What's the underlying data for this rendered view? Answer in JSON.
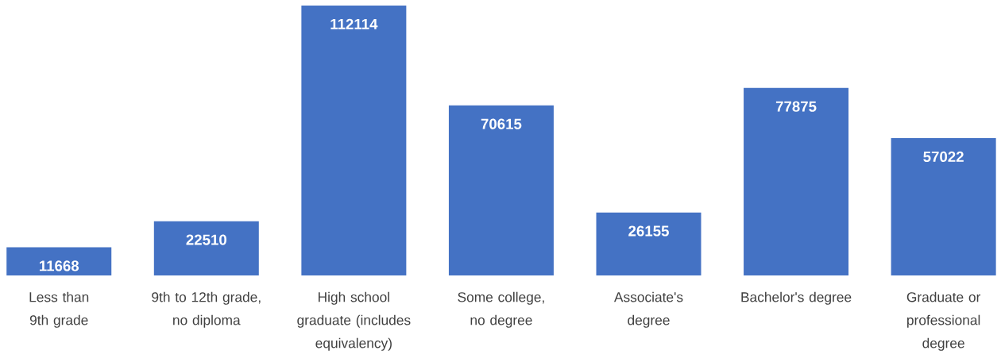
{
  "chart_data": {
    "type": "bar",
    "categories": [
      "Less than 9th grade",
      "9th to 12th grade, no diploma",
      "High school graduate (includes equivalency)",
      "Some college, no degree",
      "Associate's degree",
      "Bachelor's degree",
      "Graduate or professional degree"
    ],
    "values": [
      11668,
      22510,
      112114,
      70615,
      26155,
      77875,
      57022
    ],
    "color": "#4472c4",
    "data_labels": true
  }
}
